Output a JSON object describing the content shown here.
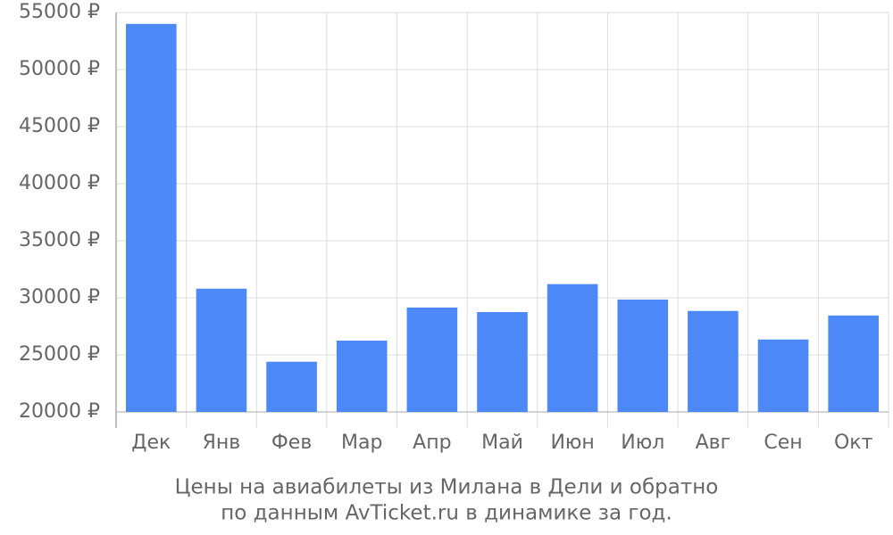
{
  "chart_data": {
    "type": "bar",
    "title": "Цены на авиабилеты из Милана в Дели и обратно",
    "subtitle": "по данным AvTicket.ru в динамике за год.",
    "categories": [
      "Дек",
      "Янв",
      "Фев",
      "Мар",
      "Апр",
      "Май",
      "Июн",
      "Июл",
      "Авг",
      "Сен",
      "Окт"
    ],
    "values": [
      54000,
      30800,
      24400,
      26250,
      29150,
      28750,
      31200,
      29850,
      28850,
      26350,
      28450
    ],
    "color": "#4d88f9",
    "ylim": [
      20000,
      55000
    ],
    "yticks": [
      {
        "value": 20000,
        "label": "20000 ₽"
      },
      {
        "value": 25000,
        "label": "25000 ₽"
      },
      {
        "value": 30000,
        "label": "30000 ₽"
      },
      {
        "value": 35000,
        "label": "35000 ₽"
      },
      {
        "value": 40000,
        "label": "40000 ₽"
      },
      {
        "value": 45000,
        "label": "45000 ₽"
      },
      {
        "value": 50000,
        "label": "50000 ₽"
      },
      {
        "value": 55000,
        "label": "55000 ₽"
      }
    ],
    "grid": true
  }
}
